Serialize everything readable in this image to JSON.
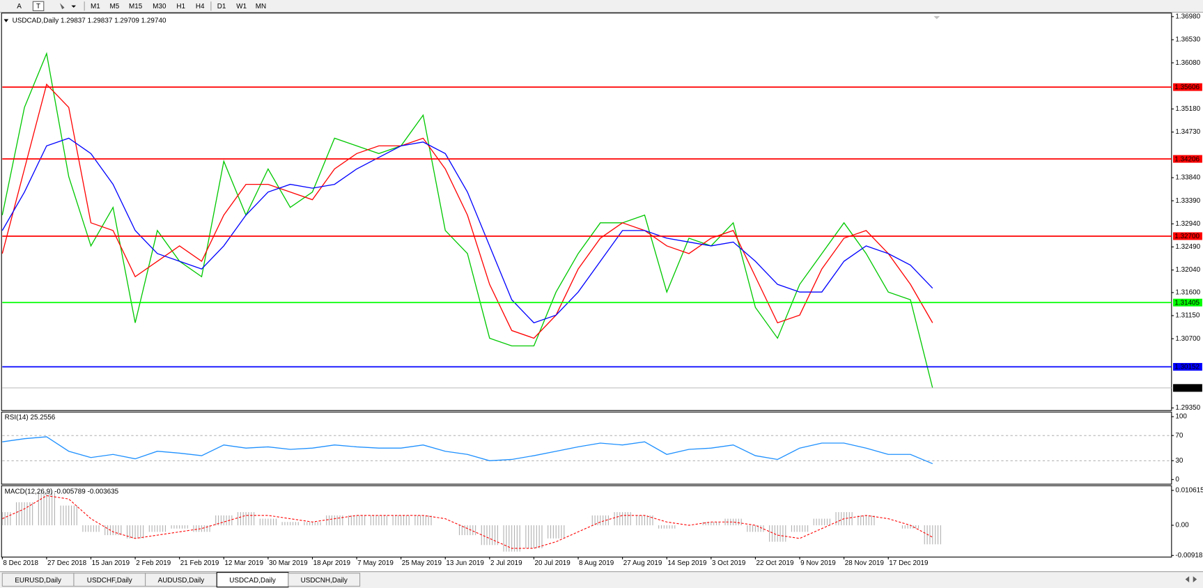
{
  "toolbar": {
    "tools": [
      "A",
      "T"
    ],
    "timeframes": [
      "M1",
      "M5",
      "M15",
      "M30",
      "H1",
      "H4",
      "D1",
      "W1",
      "MN"
    ]
  },
  "tabs": [
    "EURUSD,Daily",
    "USDCHF,Daily",
    "AUDUSD,Daily",
    "USDCAD,Daily",
    "USDCNH,Daily"
  ],
  "active_tab": 3,
  "chart_data": [
    {
      "type": "line",
      "title": "USDCAD,Daily  1.29837 1.29837 1.29709 1.29740",
      "categories": [
        "8 Dec 2018",
        null,
        "27 Dec 2018",
        null,
        "15 Jan 2019",
        null,
        "2 Feb 2019",
        null,
        "21 Feb 2019",
        null,
        "12 Mar 2019",
        null,
        "30 Mar 2019",
        null,
        "18 Apr 2019",
        null,
        "7 May 2019",
        null,
        "25 May 2019",
        null,
        "13 Jun 2019",
        null,
        "2 Jul 2019",
        null,
        "20 Jul 2019",
        null,
        "8 Aug 2019",
        null,
        "27 Aug 2019",
        null,
        "14 Sep 2019",
        null,
        "3 Oct 2019",
        null,
        "22 Oct 2019",
        null,
        "9 Nov 2019",
        null,
        "28 Nov 2019",
        null,
        "17 Dec 2019",
        null,
        null
      ],
      "series": [
        {
          "color": "#00c800",
          "values": [
            1.3311,
            1.3521,
            1.3626,
            1.3386,
            1.3251,
            1.3326,
            1.3101,
            1.3281,
            1.3221,
            1.3191,
            1.3416,
            1.3311,
            1.3401,
            1.3326,
            1.3356,
            1.3461,
            1.3446,
            1.3431,
            1.3446,
            1.3506,
            1.3281,
            1.3236,
            1.3071,
            1.3056,
            1.3056,
            1.3161,
            1.3236,
            1.3296,
            1.3296,
            1.3311,
            1.3161,
            1.3266,
            1.3251,
            1.3296,
            1.3131,
            1.3071,
            1.3176,
            1.3236,
            1.3296,
            1.3236,
            1.3161,
            1.3146,
            1.2974
          ]
        },
        {
          "color": "#ff0000",
          "values": [
            1.3236,
            1.3401,
            1.3566,
            1.3521,
            1.3296,
            1.3281,
            1.3191,
            1.3221,
            1.3251,
            1.3221,
            1.3311,
            1.3371,
            1.3371,
            1.3356,
            1.3341,
            1.3401,
            1.3431,
            1.3446,
            1.3446,
            1.3461,
            1.3401,
            1.3311,
            1.3176,
            1.3086,
            1.3071,
            1.3116,
            1.3206,
            1.3266,
            1.3296,
            1.3281,
            1.3251,
            1.3236,
            1.3266,
            1.3281,
            1.3191,
            1.3101,
            1.3116,
            1.3206,
            1.3266,
            1.3281,
            1.3236,
            1.3176,
            1.3101
          ]
        },
        {
          "color": "#0000ff",
          "values": [
            1.3281,
            1.3356,
            1.3446,
            1.3461,
            1.3431,
            1.3371,
            1.3281,
            1.3236,
            1.3221,
            1.3206,
            1.3251,
            1.3311,
            1.3356,
            1.3371,
            1.33635,
            1.3371,
            1.3401,
            1.34235,
            1.3446,
            1.34535,
            1.3431,
            1.3356,
            1.3251,
            1.3146,
            1.3101,
            1.3116,
            1.3161,
            1.3221,
            1.3281,
            1.3281,
            1.3266,
            1.32585,
            1.3251,
            1.32585,
            1.3221,
            1.3176,
            1.3161,
            1.3161,
            1.3221,
            1.3251,
            1.3236,
            1.32135,
            1.31685
          ]
        }
      ],
      "ylim": [
        1.293,
        1.3705
      ],
      "yticks": [
        {
          "value": 1.3698,
          "label": "1.36980"
        },
        {
          "value": 1.3653,
          "label": "1.36530"
        },
        {
          "value": 1.3608,
          "label": "1.36080"
        },
        {
          "value": 1.3518,
          "label": "1.35180"
        },
        {
          "value": 1.3473,
          "label": "1.34730"
        },
        {
          "value": 1.3384,
          "label": "1.33840"
        },
        {
          "value": 1.3339,
          "label": "1.33390"
        },
        {
          "value": 1.3294,
          "label": "1.32940"
        },
        {
          "value": 1.3249,
          "label": "1.32490"
        },
        {
          "value": 1.3204,
          "label": "1.32040"
        },
        {
          "value": 1.316,
          "label": "1.31600"
        },
        {
          "value": 1.3115,
          "label": "1.31150"
        },
        {
          "value": 1.307,
          "label": "1.30700"
        },
        {
          "value": 1.2935,
          "label": "1.29350"
        }
      ],
      "levels": [
        {
          "value": 1.35606,
          "label": "1.35606",
          "color": "#ff0000",
          "box": "#ff0000"
        },
        {
          "value": 1.34206,
          "label": "1.34206",
          "color": "#ff0000",
          "box": "#ff0000"
        },
        {
          "value": 1.327,
          "label": "1.32700",
          "color": "#ff0000",
          "box": "#ff0000"
        },
        {
          "value": 1.31405,
          "label": "1.31405",
          "color": "#00ff00",
          "box": "#00ff00"
        },
        {
          "value": 1.30152,
          "label": "1.30152",
          "color": "#0000ff",
          "box": "#0000ff"
        },
        {
          "value": 1.2974,
          "label": "1.29740",
          "color": "#c0c0c0",
          "box": "#000000"
        }
      ]
    },
    {
      "type": "line",
      "title": "RSI(14) 25.2556",
      "series": [
        {
          "color": "#1e90ff",
          "values": [
            60,
            65,
            68,
            45,
            35,
            40,
            33,
            45,
            42,
            38,
            55,
            50,
            52,
            48,
            50,
            55,
            52,
            50,
            50,
            55,
            45,
            40,
            30,
            32,
            38,
            45,
            52,
            58,
            55,
            60,
            40,
            48,
            50,
            55,
            38,
            32,
            50,
            58,
            58,
            50,
            40,
            40,
            25.2556
          ]
        }
      ],
      "ylim": [
        0,
        100
      ],
      "yticks": [
        100,
        70,
        30,
        0
      ],
      "grid": true
    },
    {
      "type": "bar",
      "title": "MACD(12,26,9) -0.005789 -0.003635",
      "series": [
        {
          "color": "#b0b0b0",
          "values": [
            0.004,
            0.007,
            0.01,
            0.006,
            -0.002,
            -0.003,
            -0.004,
            -0.002,
            -0.001,
            -0.002,
            0.003,
            0.004,
            0.002,
            0.001,
            0.001,
            0.003,
            0.003,
            0.003,
            0.003,
            0.003,
            0.0,
            -0.003,
            -0.006,
            -0.008,
            -0.007,
            -0.004,
            0.0,
            0.003,
            0.004,
            0.003,
            -0.001,
            0.0,
            0.001,
            0.002,
            -0.002,
            -0.005,
            -0.002,
            0.002,
            0.004,
            0.003,
            0.0,
            -0.001,
            -0.005789
          ]
        },
        {
          "color": "#ff0000",
          "values": [
            0.002,
            0.005,
            0.009,
            0.008,
            0.002,
            -0.002,
            -0.004,
            -0.003,
            -0.002,
            -0.001,
            0.001,
            0.003,
            0.003,
            0.002,
            0.001,
            0.002,
            0.003,
            0.003,
            0.003,
            0.003,
            0.002,
            -0.001,
            -0.004,
            -0.007,
            -0.007,
            -0.005,
            -0.002,
            0.001,
            0.003,
            0.003,
            0.001,
            0.0,
            0.001,
            0.001,
            0.0,
            -0.003,
            -0.004,
            -0.001,
            0.002,
            0.003,
            0.002,
            0.0,
            -0.003635
          ]
        }
      ],
      "ylim": [
        -0.00967,
        0.01203
      ],
      "yticks": [
        0.010615,
        {
          "value": 0,
          "label": "0.00"
        },
        -0.009181
      ]
    }
  ]
}
